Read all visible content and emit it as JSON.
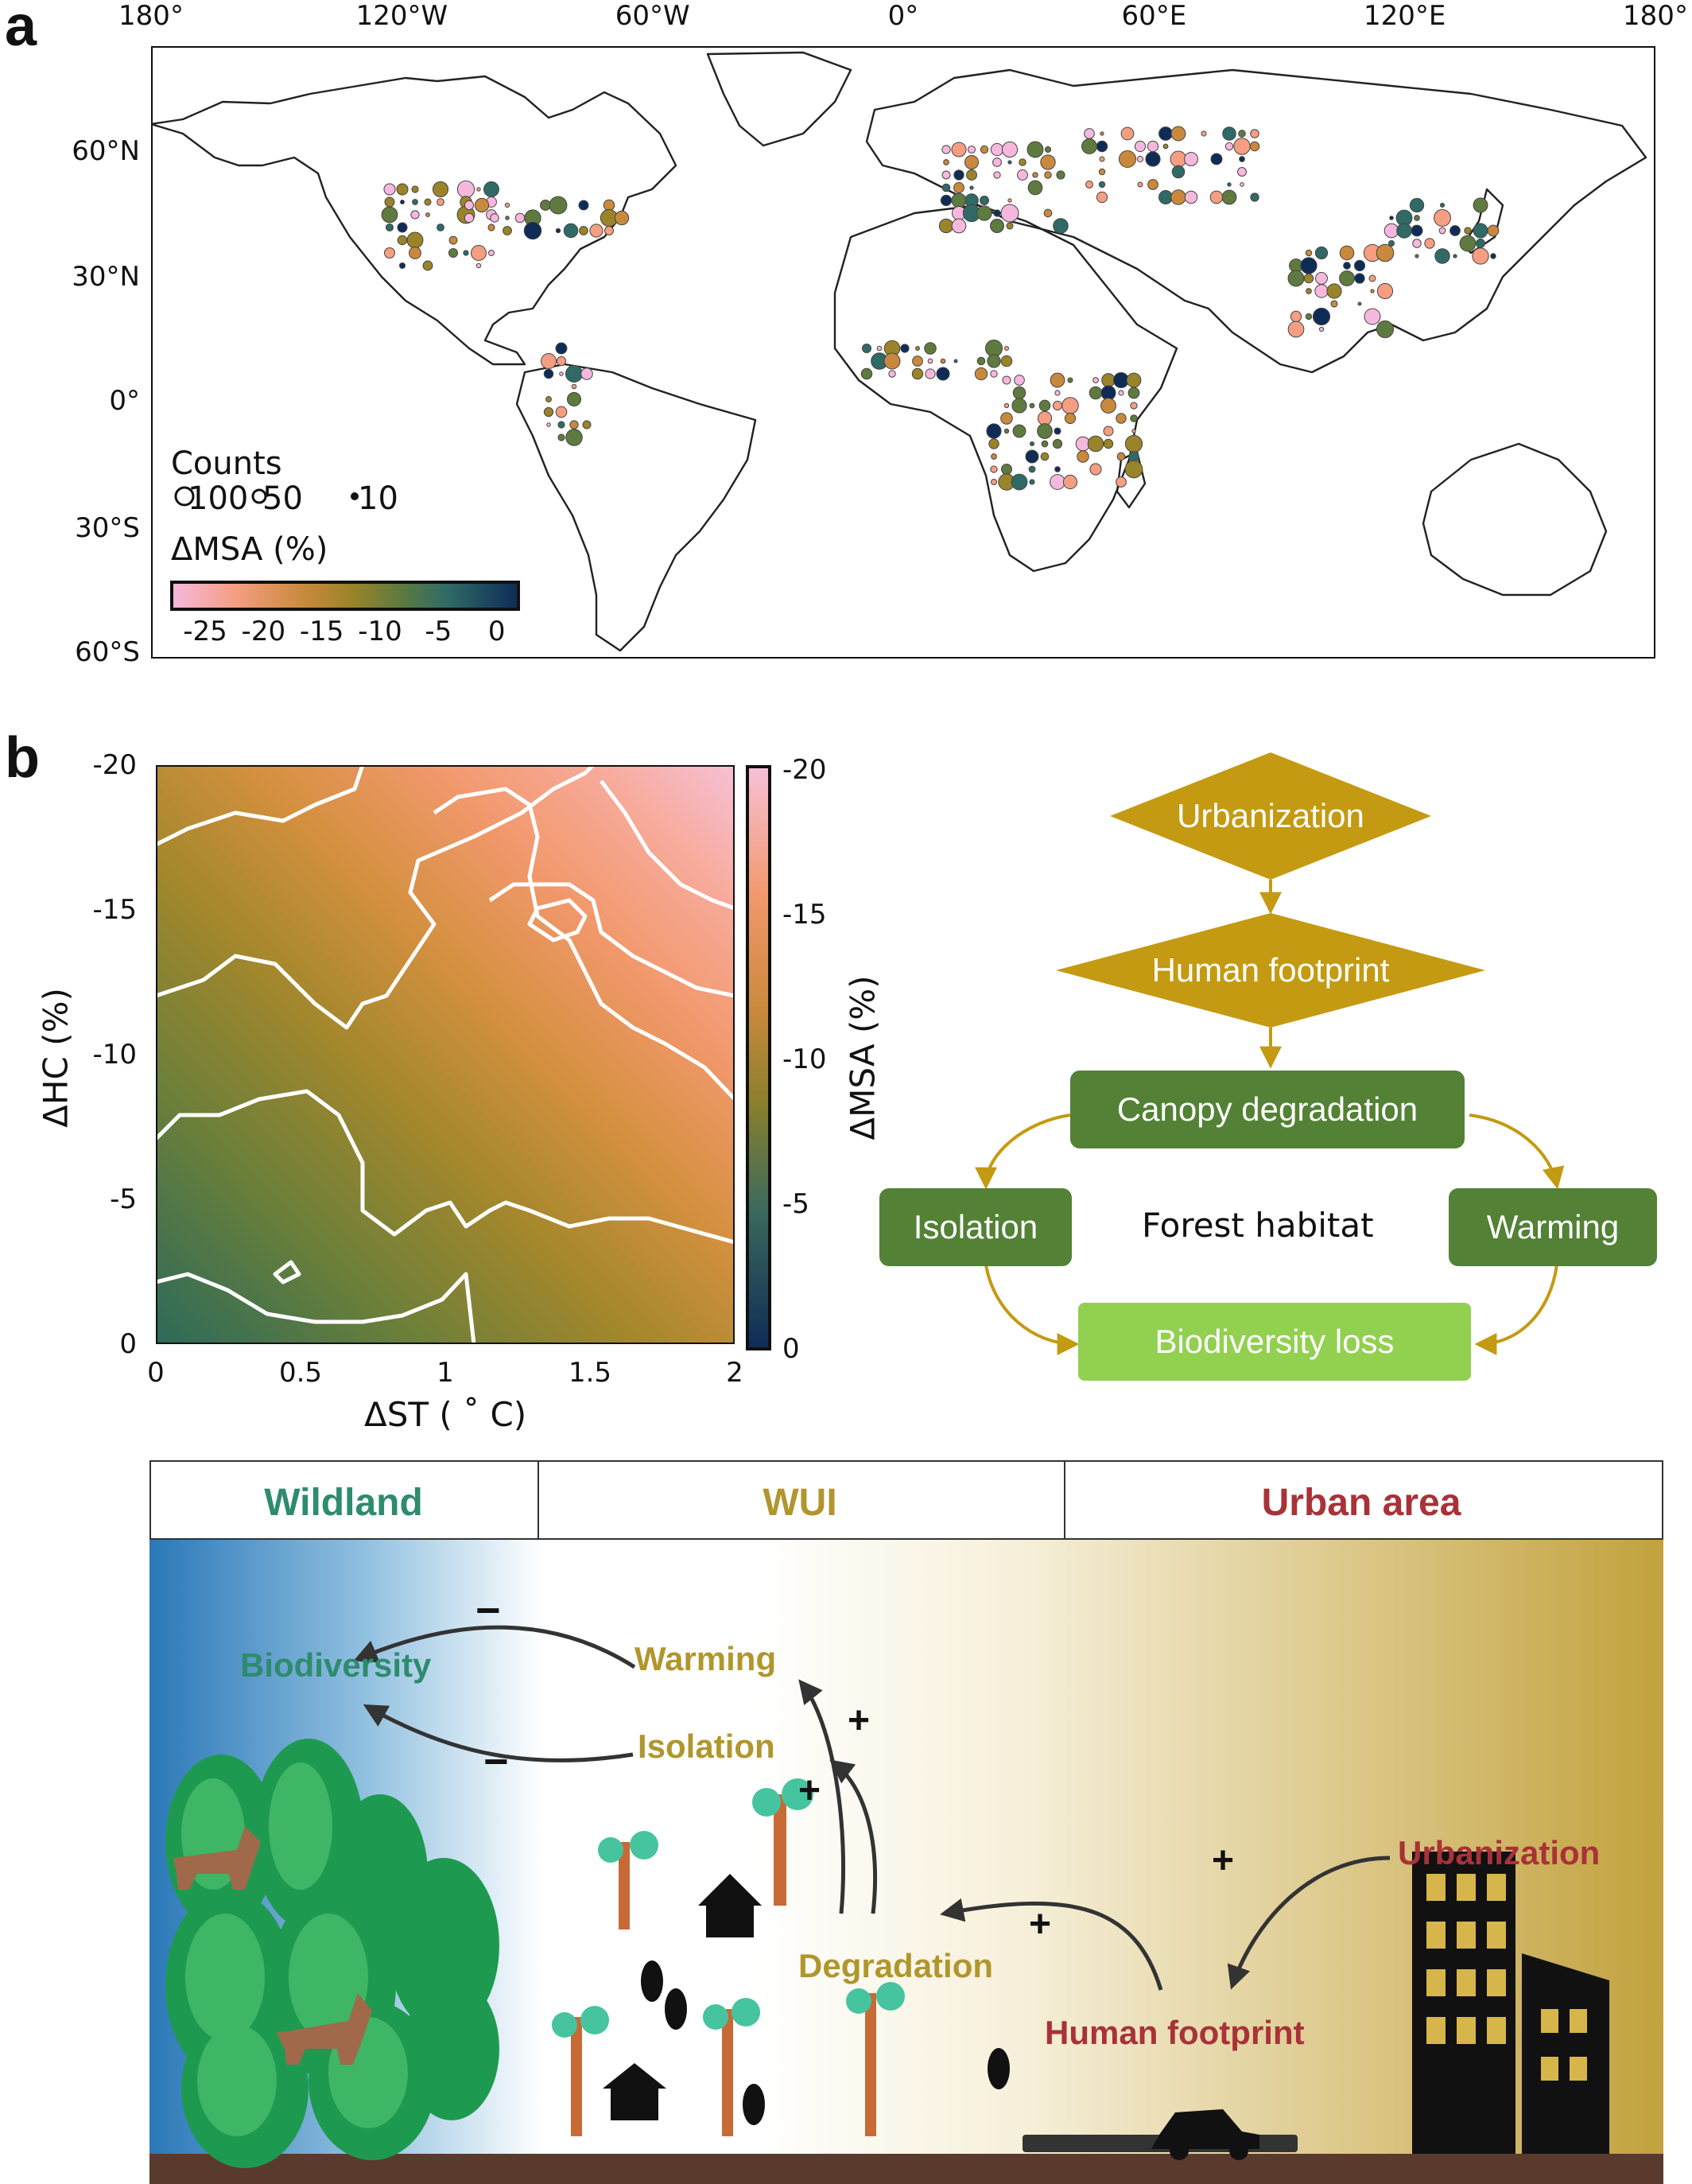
{
  "panel_a": {
    "letter": "a",
    "lon_ticks": [
      "180°",
      "120°W",
      "60°W",
      "0°",
      "60°E",
      "120°E",
      "180°"
    ],
    "lat_ticks": [
      "60°N",
      "30°N",
      "0°",
      "30°S",
      "60°S"
    ],
    "legend": {
      "counts_title": "Counts",
      "counts_items": [
        "100",
        "50",
        "10"
      ],
      "msa_title": "ΔMSA (%)",
      "colorbar_ticks": [
        "-25",
        "-20",
        "-15",
        "-10",
        "-5",
        "0"
      ],
      "colorbar_range": [
        -28,
        2
      ]
    },
    "colors": [
      "#f6b8dc",
      "#f59e82",
      "#c9893c",
      "#9a8429",
      "#5f7a3e",
      "#2f6a66",
      "#0f2c57"
    ]
  },
  "panel_b": {
    "letter": "b",
    "contour": {
      "xlabel": "ΔST ( ˚ C)",
      "ylabel": "ΔHC (%)",
      "x_ticks": [
        "0",
        "0.5",
        "1",
        "1.5",
        "2"
      ],
      "y_ticks": [
        "-20",
        "-15",
        "-10",
        "-5",
        "0"
      ],
      "colorbar_label": "ΔMSA (%)",
      "colorbar_ticks": [
        "-20",
        "-15",
        "-10",
        "-5",
        "0"
      ],
      "xlim": [
        0,
        2
      ],
      "ylim": [
        0,
        -20
      ]
    },
    "flow": {
      "urbanization": "Urbanization",
      "human_footprint": "Human footprint",
      "canopy": "Canopy degradation",
      "isolation": "Isolation",
      "center": "Forest habitat",
      "warming": "Warming",
      "biodiversity_loss": "Biodiversity loss",
      "colors": {
        "gold": "#c49a12",
        "green": "#538135",
        "light_green": "#92d050"
      }
    }
  },
  "illustration": {
    "zones": {
      "wildland": "Wildland",
      "wui": "WUI",
      "urban": "Urban area"
    },
    "zone_colors": {
      "wildland": "#2e8b6e",
      "wui": "#b0962d",
      "urban": "#a83238"
    },
    "labels": {
      "biodiversity": "Biodiversity",
      "warming": "Warming",
      "isolation": "Isolation",
      "degradation": "Degradation",
      "urbanization": "Urbanization",
      "human_footprint": "Human footprint"
    },
    "signs": {
      "minus1": "−",
      "minus2": "−",
      "plus1": "+",
      "plus2": "+",
      "plus3": "+",
      "plus4": "+"
    }
  }
}
